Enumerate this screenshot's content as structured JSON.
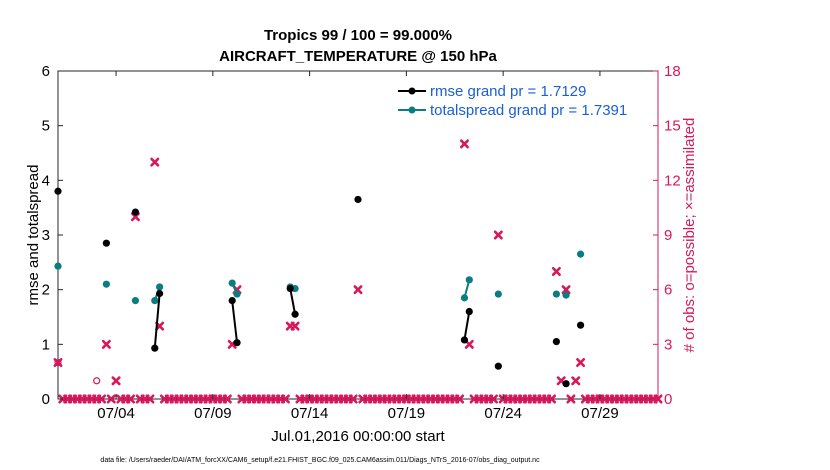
{
  "chart_data": {
    "type": "line",
    "title_line1": "Tropics 99 / 100 = 99.000%",
    "title_line2": "AIRCRAFT_TEMPERATURE @ 150 hPa",
    "xlabel": "Jul.01,2016 00:00:00 start",
    "ylabel_left": "rmse and totalspread",
    "ylabel_right": "# of obs: o=possible; ×=assimilated",
    "footnote": "data file: /Users/raeder/DAI/ATM_forcXX/CAM6_setup/f.e21.FHIST_BGC.f09_025.CAM6assim.011/Diags_NTrS_2016-07/obs_diag_output.nc",
    "xlim": [
      1,
      32
    ],
    "ylim_left": [
      0,
      6
    ],
    "ylim_right": [
      0,
      18
    ],
    "x_ticks": [
      4,
      9,
      14,
      19,
      24,
      29
    ],
    "x_tick_labels": [
      "07/04",
      "07/09",
      "07/14",
      "07/19",
      "07/24",
      "07/29"
    ],
    "y_left_ticks": [
      "0",
      "1",
      "2",
      "3",
      "4",
      "5",
      "6"
    ],
    "y_right_ticks": [
      "0",
      "3",
      "6",
      "9",
      "12",
      "15",
      "18"
    ],
    "colors": {
      "rmse": "#000000",
      "spread": "#0a7d80",
      "obs": "#d6185c",
      "legend_text": "#1a5fd6"
    },
    "legend": [
      {
        "label": "rmse grand pr = 1.7129",
        "series": "rmse"
      },
      {
        "label": "totalspread grand pr = 1.7391",
        "series": "spread"
      }
    ],
    "rmse_segments": [
      [
        [
          1.0,
          3.8
        ]
      ],
      [
        [
          3.5,
          2.85
        ]
      ],
      [
        [
          5.0,
          3.42
        ]
      ],
      [
        [
          6.0,
          0.93
        ],
        [
          6.25,
          1.93
        ]
      ],
      [
        [
          10.0,
          1.8
        ],
        [
          10.25,
          1.03
        ]
      ],
      [
        [
          13.0,
          2.02
        ],
        [
          13.25,
          1.55
        ]
      ],
      [
        [
          16.5,
          3.65
        ]
      ],
      [
        [
          22.0,
          1.08
        ],
        [
          22.25,
          1.6
        ]
      ],
      [
        [
          23.75,
          0.6
        ]
      ],
      [
        [
          26.75,
          1.05
        ]
      ],
      [
        [
          27.25,
          0.28
        ]
      ],
      [
        [
          28.0,
          1.35
        ]
      ]
    ],
    "spread_segments": [
      [
        [
          1.0,
          2.43
        ]
      ],
      [
        [
          3.5,
          2.1
        ]
      ],
      [
        [
          5.0,
          1.8
        ]
      ],
      [
        [
          6.0,
          1.8
        ],
        [
          6.25,
          2.05
        ]
      ],
      [
        [
          10.0,
          2.12
        ],
        [
          10.25,
          1.92
        ]
      ],
      [
        [
          13.0,
          2.05
        ],
        [
          13.25,
          2.02
        ]
      ],
      [
        [
          22.0,
          1.85
        ],
        [
          22.25,
          2.18
        ]
      ],
      [
        [
          23.75,
          1.92
        ]
      ],
      [
        [
          26.75,
          1.92
        ]
      ],
      [
        [
          27.25,
          1.9
        ]
      ],
      [
        [
          28.0,
          2.65
        ]
      ]
    ],
    "obs_possible": [
      [
        1.0,
        2
      ],
      [
        3.0,
        1
      ]
    ],
    "obs_assimilated_nonzero": [
      [
        1.0,
        2
      ],
      [
        3.5,
        3
      ],
      [
        4.0,
        1
      ],
      [
        5.0,
        10
      ],
      [
        6.0,
        13
      ],
      [
        6.25,
        4
      ],
      [
        10.0,
        3
      ],
      [
        10.25,
        6
      ],
      [
        13.0,
        4
      ],
      [
        13.25,
        4
      ],
      [
        16.5,
        6
      ],
      [
        22.0,
        14
      ],
      [
        22.25,
        3
      ],
      [
        23.75,
        9
      ],
      [
        26.75,
        7
      ],
      [
        27.0,
        1
      ],
      [
        27.25,
        6
      ],
      [
        27.75,
        1
      ],
      [
        28.0,
        2
      ]
    ],
    "obs_assimilated_zero_start": 1.0,
    "obs_assimilated_zero_step": 0.25,
    "obs_assimilated_zero_end": 32.0
  }
}
